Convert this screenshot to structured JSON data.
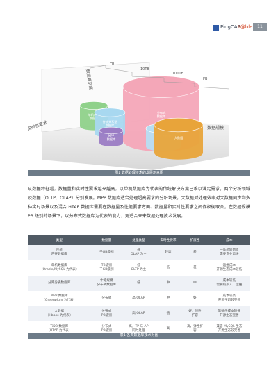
{
  "header": {
    "brand": "PingCAP",
    "partner": "t@ble",
    "page": "11"
  },
  "figure": {
    "axis_labels": {
      "scale": [
        "TB",
        "10TB",
        "100TB",
        "PB"
      ],
      "left_top": "数据复杂度",
      "left_bottom": "实时性要求",
      "right": "数据规模"
    },
    "nodes": [
      "单机内存\n数据库",
      "传统关系型\n数据库",
      "MPP\n数据库",
      "分布式\n数据库",
      "MPP 大数据",
      "大数据"
    ],
    "caption": "图1 数据处理技术的发展示意图"
  },
  "body": {
    "paragraph": "从数据特征看，数据量和实时性要求越来越高，以单机数据库为代表的传统解决方案已难以满足需求，两个分析领域及数据（OLTP、OLAP）分别发展。MPP 数据库适合处理超高要求的分析场景，大数据对处理效率对大数据同步和多种实时场景以及混合 HTAP 数据库需要在数据量及性能要求方面、数据量和实时性要求之间作权衡取舍；在数据规模 PB 级别的场景下，以分布式数据库为代表的能力，更适合未来数据处理技术发展。"
  },
  "table": {
    "columns": [
      "类型",
      "数据量",
      "处理类型",
      "实时性要求",
      "扩展性",
      "成本"
    ],
    "rows": [
      [
        "传统\n内存数据库",
        "千GB级别",
        "低\nOLAP 为主",
        "较高",
        "差",
        "一体机较昂贵\n需要专业运维"
      ],
      [
        "单机数据库\n（Oracle/MySQL 为代表）",
        "TB级别\n千GB级别",
        "低\nOLTP 为主",
        "低",
        "差",
        "运维成本\n开源生态成本较低"
      ],
      [
        "分库分表数据库",
        "中等规模\n分布式数据库",
        "低",
        "中",
        "中",
        "成本较低\n需要较多人工运维"
      ],
      [
        "MPP 数据库\n（Greenplum 为代表）",
        "分布式",
        "高 OLAP",
        "中",
        "好",
        "成本较高\n开源生态较完善"
      ],
      [
        "大数据\n（Hbase 为代表）",
        "分布式\nPB级别",
        "高 OLAP",
        "低",
        "好，弹性\n扩容",
        "软硬件成本较低\n开源生态完善"
      ],
      [
        "TiDB 数据库\n（HTAP 为代表）",
        "分布式\nPB级别",
        "高，TP 与 AP\n同时处理",
        "高",
        "高，弹性扩\n容",
        "兼容 MySQL 生态\n开源生态较完善"
      ]
    ],
    "caption": "表1 各类数据库技术对比"
  }
}
